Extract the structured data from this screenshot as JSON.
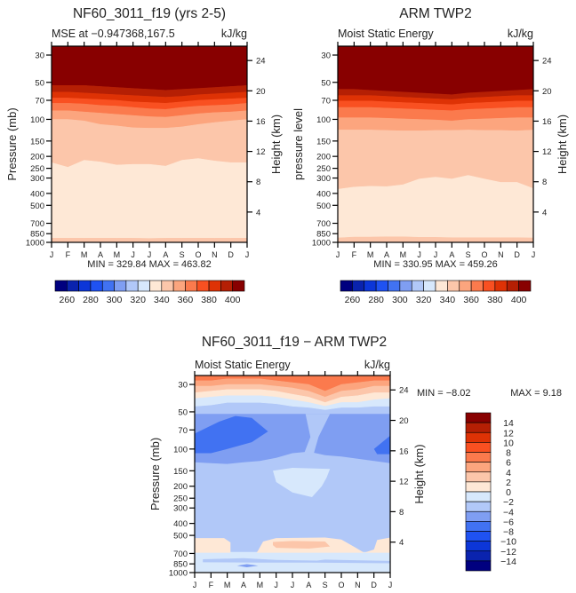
{
  "chart_data": [
    {
      "type": "heatmap",
      "id": "model",
      "title": "NF60_3011_f19 (yrs 2-5)",
      "subtitle_left": "MSE at −0.947368,167.5",
      "subtitle_right": "kJ/kg",
      "ylabel": "Pressure (mb)",
      "ylabel_right": "Height (km)",
      "stats": "MIN = 329.84 MAX = 463.82",
      "x_ticks": [
        "J",
        "F",
        "M",
        "A",
        "M",
        "J",
        "J",
        "A",
        "S",
        "O",
        "N",
        "D",
        "J"
      ],
      "y_ticks": [
        30,
        50,
        70,
        100,
        150,
        200,
        250,
        300,
        400,
        500,
        700,
        850,
        1000
      ],
      "height_ticks": [
        24,
        20,
        16,
        12,
        8,
        4
      ],
      "ylim": [
        25.4,
        1000
      ],
      "bands": [
        {
          "level": 15,
          "bottom": [
            53,
            53,
            53,
            54,
            55,
            56,
            57,
            58,
            57,
            56,
            55,
            54,
            53
          ]
        },
        {
          "level": 14,
          "bottom": [
            60,
            60,
            61,
            62,
            63,
            64,
            65,
            66,
            65,
            63,
            62,
            61,
            60
          ]
        },
        {
          "level": 13,
          "bottom": [
            67,
            67,
            68,
            69,
            70,
            72,
            73,
            74,
            72,
            70,
            69,
            68,
            67
          ]
        },
        {
          "level": 12,
          "bottom": [
            74,
            74,
            75,
            77,
            78,
            80,
            82,
            83,
            80,
            78,
            77,
            76,
            74
          ]
        },
        {
          "level": 11,
          "bottom": [
            85,
            85,
            87,
            89,
            91,
            93,
            95,
            96,
            93,
            90,
            88,
            87,
            85
          ]
        },
        {
          "level": 10,
          "bottom": [
            100,
            100,
            103,
            110,
            113,
            117,
            118,
            118,
            115,
            110,
            106,
            103,
            100
          ]
        },
        {
          "level": 9,
          "bottom": [
            225,
            245,
            215,
            222,
            235,
            232,
            232,
            240,
            215,
            208,
            218,
            225,
            225
          ]
        },
        {
          "level": 8,
          "bottom": [
            925,
            925,
            925,
            925,
            925,
            925,
            930,
            925,
            925,
            925,
            925,
            925,
            925
          ]
        },
        {
          "level": 9,
          "bottom": [
            1000,
            1000,
            1000,
            1000,
            1000,
            1000,
            1000,
            1000,
            1000,
            1000,
            1000,
            1000,
            1000
          ]
        }
      ],
      "colorbar": {
        "orientation": "horizontal",
        "labels": [
          "260",
          "280",
          "300",
          "320",
          "340",
          "360",
          "380",
          "400"
        ]
      }
    },
    {
      "type": "heatmap",
      "id": "obs",
      "title": "ARM TWP2",
      "subtitle_left": "Moist Static Energy",
      "subtitle_right": "kJ/kg",
      "ylabel": "pressure level",
      "ylabel_right": "Height (km)",
      "stats": "MIN = 330.95 MAX = 459.26",
      "x_ticks": [
        "J",
        "F",
        "M",
        "A",
        "M",
        "J",
        "J",
        "A",
        "S",
        "O",
        "N",
        "D",
        "J"
      ],
      "y_ticks": [
        30,
        50,
        70,
        100,
        150,
        200,
        250,
        300,
        400,
        500,
        700,
        850,
        1000
      ],
      "height_ticks": [
        24,
        20,
        16,
        12,
        8,
        4
      ],
      "ylim": [
        25.4,
        1000
      ],
      "bands": [
        {
          "level": 15,
          "bottom": [
            57,
            57,
            58,
            59,
            60,
            61,
            62,
            63,
            61,
            60,
            59,
            58,
            57
          ]
        },
        {
          "level": 14,
          "bottom": [
            64,
            64,
            64,
            65,
            66,
            67,
            68,
            69,
            67,
            66,
            65,
            64,
            64
          ]
        },
        {
          "level": 13,
          "bottom": [
            71,
            71,
            71,
            72,
            73,
            74,
            75,
            76,
            74,
            73,
            72,
            71,
            71
          ]
        },
        {
          "level": 12,
          "bottom": [
            80,
            80,
            80,
            81,
            82,
            83,
            84,
            85,
            83,
            82,
            81,
            80,
            80
          ]
        },
        {
          "level": 11,
          "bottom": [
            97,
            97,
            97,
            98,
            99,
            100,
            101,
            103,
            100,
            99,
            98,
            97,
            97
          ]
        },
        {
          "level": 10,
          "bottom": [
            122,
            122,
            122,
            123,
            124,
            124,
            123,
            123,
            122,
            123,
            123,
            124,
            122
          ]
        },
        {
          "level": 9,
          "bottom": [
            370,
            355,
            350,
            352,
            340,
            305,
            295,
            305,
            285,
            305,
            325,
            325,
            365
          ]
        },
        {
          "level": 8,
          "bottom": [
            920,
            905,
            905,
            900,
            900,
            910,
            910,
            915,
            915,
            915,
            915,
            915,
            920
          ]
        },
        {
          "level": 9,
          "bottom": [
            1000,
            1000,
            1000,
            1000,
            1000,
            1000,
            1000,
            1000,
            1000,
            1000,
            1000,
            1000,
            1000
          ]
        }
      ],
      "colorbar": {
        "orientation": "horizontal",
        "labels": [
          "260",
          "280",
          "300",
          "320",
          "340",
          "360",
          "380",
          "400"
        ]
      }
    },
    {
      "type": "heatmap",
      "id": "diff",
      "title": "NF60_3011_f19 − ARM TWP2",
      "subtitle_left": "Moist Static Energy",
      "subtitle_right": "kJ/kg",
      "ylabel": "Pressure (mb)",
      "ylabel_right": "Height (km)",
      "stats_min": "MIN =   −8.02",
      "stats_max": "MAX =    9.18",
      "x_ticks": [
        "J",
        "F",
        "M",
        "A",
        "M",
        "J",
        "J",
        "A",
        "S",
        "O",
        "N",
        "D",
        "J"
      ],
      "y_ticks": [
        30,
        50,
        70,
        100,
        150,
        200,
        250,
        300,
        400,
        500,
        700,
        850,
        1000
      ],
      "height_ticks": [
        24,
        20,
        16,
        12,
        8,
        4
      ],
      "ylim": [
        25.4,
        1000
      ],
      "background_level": 6,
      "polygons_under": [
        {
          "level": 7,
          "points": [
            [
              0,
              680
            ],
            [
              12,
              680
            ],
            [
              12,
              1000
            ],
            [
              0,
              1000
            ]
          ]
        }
      ],
      "bands": [
        {
          "level": 11,
          "bottom": [
            28,
            28,
            27,
            27,
            27,
            28,
            29,
            30,
            34,
            30,
            29,
            28,
            28
          ]
        },
        {
          "level": 10,
          "bottom": [
            31,
            31,
            30,
            30,
            30,
            31,
            32,
            34,
            38,
            34,
            33,
            31,
            31
          ]
        },
        {
          "level": 9,
          "bottom": [
            35,
            34,
            33,
            33,
            33,
            34,
            36,
            38,
            42,
            38,
            37,
            35,
            35
          ]
        },
        {
          "level": 8,
          "bottom": [
            39,
            38,
            37,
            37,
            37,
            38,
            40,
            42,
            45,
            42,
            42,
            40,
            39
          ]
        },
        {
          "level": 7,
          "bottom": [
            45,
            44,
            42,
            42,
            42,
            43,
            45,
            46,
            48,
            46,
            46,
            45,
            45
          ]
        }
      ],
      "polygons": [
        {
          "level": 5,
          "points": [
            [
              0,
              52
            ],
            [
              12,
              52
            ],
            [
              12,
              130
            ],
            [
              11,
              125
            ],
            [
              10,
              120
            ],
            [
              9,
              115
            ],
            [
              8,
              112
            ],
            [
              7,
              105
            ],
            [
              6,
              108
            ],
            [
              5,
              118
            ],
            [
              4,
              125
            ],
            [
              3,
              128
            ],
            [
              2,
              132
            ],
            [
              1,
              130
            ],
            [
              0,
              128
            ]
          ]
        },
        {
          "level": 6,
          "points": [
            [
              6.8,
              52
            ],
            [
              8.3,
              52
            ],
            [
              7.6,
              80
            ],
            [
              7.3,
              110
            ],
            [
              6.7,
              110
            ],
            [
              7.1,
              80
            ]
          ]
        },
        {
          "level": 4,
          "points": [
            [
              0,
              75
            ],
            [
              1.5,
              60
            ],
            [
              2.5,
              54
            ],
            [
              3.5,
              56
            ],
            [
              4.5,
              72
            ],
            [
              3.5,
              88
            ],
            [
              2,
              100
            ],
            [
              1,
              108
            ],
            [
              0,
              108
            ]
          ]
        },
        {
          "level": 4,
          "points": [
            [
              11,
              100
            ],
            [
              12,
              78
            ],
            [
              12,
              110
            ],
            [
              11.2,
              110
            ]
          ]
        },
        {
          "level": 7,
          "points": [
            [
              4.8,
              150
            ],
            [
              6,
              142
            ],
            [
              8.3,
              145
            ],
            [
              8.1,
              170
            ],
            [
              7.8,
              200
            ],
            [
              7.2,
              245
            ],
            [
              6,
              225
            ],
            [
              5,
              185
            ]
          ]
        },
        {
          "level": 8,
          "points": [
            [
              0,
              525
            ],
            [
              1.8,
              525
            ],
            [
              2.2,
              570
            ],
            [
              2.2,
              690
            ],
            [
              0,
              690
            ]
          ]
        },
        {
          "level": 8,
          "points": [
            [
              3.9,
              660
            ],
            [
              4.2,
              560
            ],
            [
              5,
              525
            ],
            [
              8,
              520
            ],
            [
              9,
              540
            ],
            [
              9.8,
              620
            ],
            [
              10.4,
              690
            ],
            [
              3.8,
              690
            ]
          ]
        },
        {
          "level": 8,
          "points": [
            [
              10.4,
              690
            ],
            [
              11,
              650
            ],
            [
              11.2,
              545
            ],
            [
              12,
              520
            ],
            [
              12,
              690
            ]
          ]
        },
        {
          "level": 9,
          "points": [
            [
              4.8,
              565
            ],
            [
              6,
              555
            ],
            [
              8,
              560
            ],
            [
              8.3,
              615
            ],
            [
              7,
              640
            ],
            [
              5,
              630
            ],
            [
              4.8,
              600
            ]
          ]
        },
        {
          "level": 6,
          "points": [
            [
              0.5,
              780
            ],
            [
              3,
              765
            ],
            [
              5,
              790
            ],
            [
              7.5,
              800
            ],
            [
              8,
              785
            ],
            [
              12,
              805
            ],
            [
              12,
              840
            ],
            [
              7,
              830
            ],
            [
              4,
              830
            ],
            [
              0.5,
              825
            ]
          ]
        },
        {
          "level": 5,
          "points": [
            [
              2.6,
              880
            ],
            [
              3.2,
              855
            ],
            [
              3.9,
              880
            ],
            [
              3.2,
              905
            ]
          ]
        }
      ],
      "colorbar": {
        "orientation": "vertical",
        "labels": [
          "14",
          "12",
          "10",
          "8",
          "6",
          "4",
          "2",
          "0",
          "−2",
          "−4",
          "−6",
          "−8",
          "−10",
          "−12",
          "−14"
        ]
      }
    }
  ],
  "palette": [
    "#00007f",
    "#0a23ae",
    "#0c36d8",
    "#1f52f2",
    "#4172f2",
    "#7f9ef2",
    "#b1c8f8",
    "#d7e8fc",
    "#fee8d6",
    "#fcc6aa",
    "#fca57e",
    "#fb7a4d",
    "#f95021",
    "#de3205",
    "#b51f04",
    "#880000"
  ]
}
